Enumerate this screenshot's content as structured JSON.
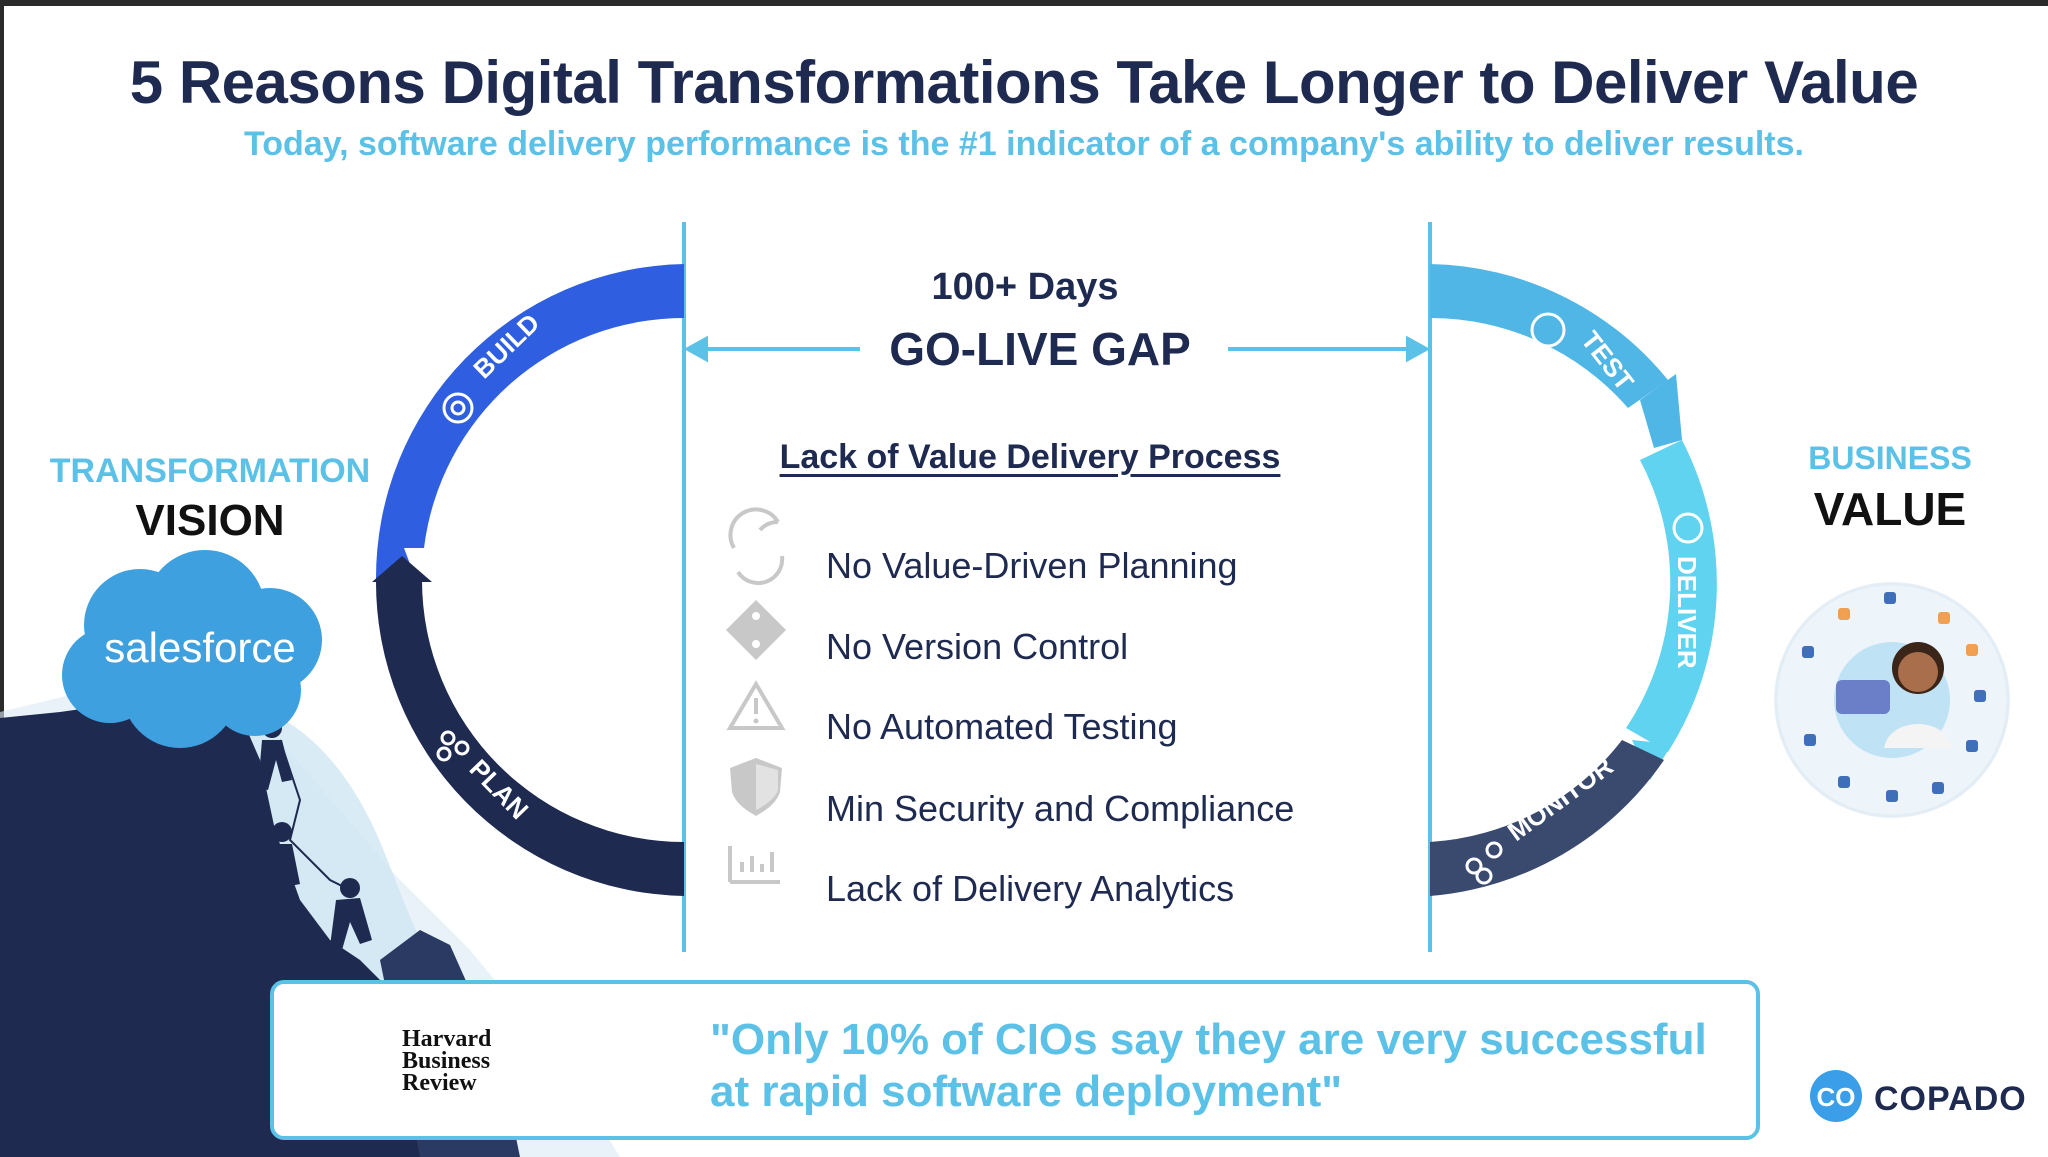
{
  "title": "5 Reasons Digital Transformations Take Longer to Deliver Value",
  "subtitle": "Today, software delivery performance is the #1 indicator of a company's ability to deliver results.",
  "left": {
    "line1": "TRANSFORMATION",
    "line2": "VISION",
    "brand": "salesforce"
  },
  "right": {
    "line1": "BUSINESS",
    "line2": "VALUE"
  },
  "gap": {
    "days": "100+ Days",
    "label": "GO-LIVE GAP"
  },
  "cycle": {
    "left_stages": [
      "BUILD",
      "PLAN"
    ],
    "right_stages": [
      "TEST",
      "DELIVER",
      "MONITOR"
    ]
  },
  "lack": {
    "heading": "Lack of Value Delivery Process",
    "items": [
      {
        "icon": "refresh-icon",
        "label": "No Value-Driven Planning"
      },
      {
        "icon": "git-branch-icon",
        "label": "No Version Control"
      },
      {
        "icon": "warning-icon",
        "label": "No Automated Testing"
      },
      {
        "icon": "shield-icon",
        "label": "Min Security and Compliance"
      },
      {
        "icon": "bar-chart-icon",
        "label": "Lack of Delivery Analytics"
      }
    ]
  },
  "quote": {
    "source_line1": "Harvard",
    "source_line2": "Business",
    "source_line3": "Review",
    "line1": "\"Only 10% of CIOs say they are very successful",
    "line2": "at rapid software deployment\""
  },
  "logo": {
    "name": "COPADO",
    "mark": "CO"
  },
  "colors": {
    "navy": "#1e2a4f",
    "blue": "#2f5fe0",
    "light_blue": "#5cc1e6",
    "cyan": "#4fc3ea"
  }
}
